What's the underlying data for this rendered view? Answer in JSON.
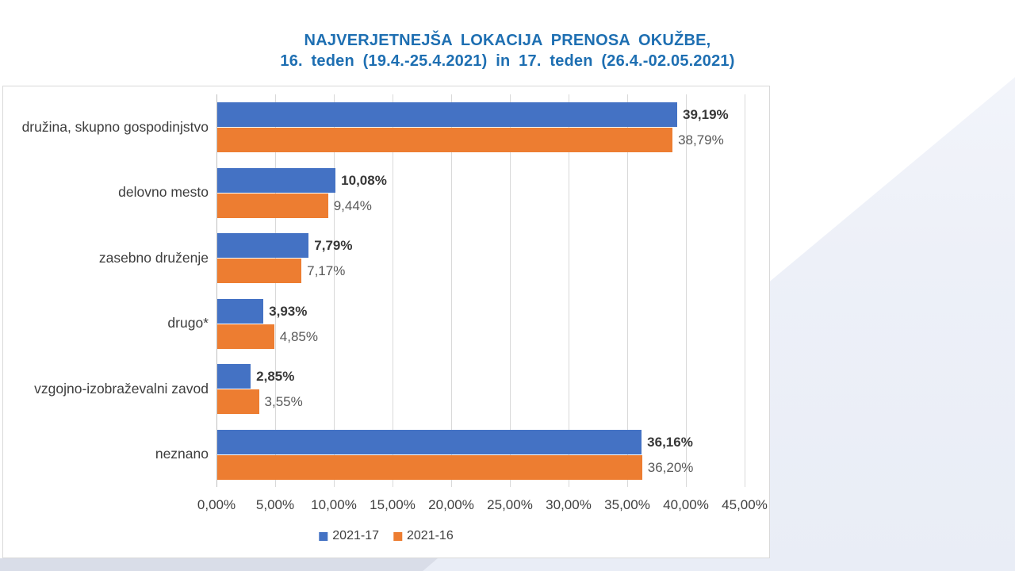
{
  "page": {
    "background": "#ffffff",
    "accent_light": "#edf0f8",
    "accent_dark": "#d9dde8"
  },
  "title": {
    "line1": "NAJVERJETNEJŠA LOKACIJA PRENOSA OKUŽBE,",
    "line2": "16. teden (19.4.-25.4.2021) in 17. teden (26.4.-02.05.2021)",
    "color": "#1e6fb2"
  },
  "chart_data": {
    "type": "bar",
    "orientation": "horizontal",
    "title": "NAJVERJETNEJŠA LOKACIJA PRENOSA OKUŽBE, 16. teden (19.4.-25.4.2021) in 17. teden (26.4.-02.05.2021)",
    "categories": [
      "družina, skupno gospodinjstvo",
      "delovno mesto",
      "zasebno druženje",
      "drugo*",
      "vzgojno-izobraževalni zavod",
      "neznano"
    ],
    "series": [
      {
        "name": "2021-17",
        "color": "#4472C4",
        "values": [
          39.19,
          10.08,
          7.79,
          3.93,
          2.85,
          36.16
        ],
        "labels": [
          "39,19%",
          "10,08%",
          "7,79%",
          "3,93%",
          "2,85%",
          "36,16%"
        ]
      },
      {
        "name": "2021-16",
        "color": "#ED7D31",
        "values": [
          38.79,
          9.44,
          7.17,
          4.85,
          3.55,
          36.2
        ],
        "labels": [
          "38,79%",
          "9,44%",
          "7,17%",
          "4,85%",
          "3,55%",
          "36,20%"
        ]
      }
    ],
    "xlabel": "",
    "ylabel": "",
    "x_axis": {
      "min": 0,
      "max": 45,
      "step": 5,
      "tick_labels": [
        "0,00%",
        "5,00%",
        "10,00%",
        "15,00%",
        "20,00%",
        "25,00%",
        "30,00%",
        "35,00%",
        "40,00%",
        "45,00%"
      ]
    },
    "grid": true,
    "legend_position": "bottom"
  }
}
